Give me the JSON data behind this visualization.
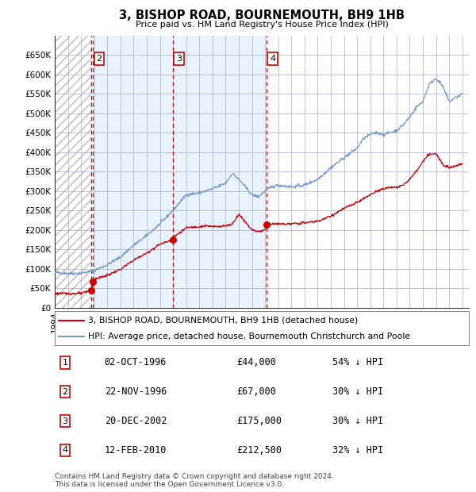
{
  "title": "3, BISHOP ROAD, BOURNEMOUTH, BH9 1HB",
  "subtitle": "Price paid vs. HM Land Registry's House Price Index (HPI)",
  "footer_line1": "Contains HM Land Registry data © Crown copyright and database right 2024.",
  "footer_line2": "This data is licensed under the Open Government Licence v3.0.",
  "legend_line1": "3, BISHOP ROAD, BOURNEMOUTH, BH9 1HB (detached house)",
  "legend_line2": "HPI: Average price, detached house, Bournemouth Christchurch and Poole",
  "sale_color": "#cc0000",
  "hpi_color": "#7799cc",
  "hpi_fill_color": "#ddeeff",
  "grid_color": "#aaaacc",
  "sale_points": [
    {
      "label": "1",
      "year": 1996.75,
      "price": 44000
    },
    {
      "label": "2",
      "year": 1996.92,
      "price": 67000
    },
    {
      "label": "3",
      "year": 2002.97,
      "price": 175000
    },
    {
      "label": "4",
      "year": 2010.12,
      "price": 212500
    }
  ],
  "table_rows": [
    {
      "num": "1",
      "date": "02-OCT-1996",
      "price": "£44,000",
      "pct": "54% ↓ HPI"
    },
    {
      "num": "2",
      "date": "22-NOV-1996",
      "price": "£67,000",
      "pct": "30% ↓ HPI"
    },
    {
      "num": "3",
      "date": "20-DEC-2002",
      "price": "£175,000",
      "pct": "30% ↓ HPI"
    },
    {
      "num": "4",
      "date": "12-FEB-2010",
      "price": "£212,500",
      "pct": "32% ↓ HPI"
    }
  ],
  "ylim": [
    0,
    700000
  ],
  "yticks": [
    0,
    50000,
    100000,
    150000,
    200000,
    250000,
    300000,
    350000,
    400000,
    450000,
    500000,
    550000,
    600000,
    650000
  ],
  "xmin": 1994.0,
  "xmax": 2025.5,
  "xticks": [
    1994,
    1995,
    1996,
    1997,
    1998,
    1999,
    2000,
    2001,
    2002,
    2003,
    2004,
    2005,
    2006,
    2007,
    2008,
    2009,
    2010,
    2011,
    2012,
    2013,
    2014,
    2015,
    2016,
    2017,
    2018,
    2019,
    2020,
    2021,
    2022,
    2023,
    2024,
    2025
  ],
  "hpi_anchors": [
    [
      1994.0,
      90000
    ],
    [
      1995.0,
      88000
    ],
    [
      1996.0,
      88000
    ],
    [
      1997.0,
      95000
    ],
    [
      1998.0,
      110000
    ],
    [
      1999.0,
      130000
    ],
    [
      2000.0,
      160000
    ],
    [
      2001.0,
      185000
    ],
    [
      2002.0,
      215000
    ],
    [
      2003.0,
      250000
    ],
    [
      2004.0,
      290000
    ],
    [
      2005.0,
      295000
    ],
    [
      2006.0,
      305000
    ],
    [
      2007.0,
      320000
    ],
    [
      2007.5,
      345000
    ],
    [
      2008.0,
      330000
    ],
    [
      2009.0,
      290000
    ],
    [
      2009.5,
      285000
    ],
    [
      2010.0,
      300000
    ],
    [
      2010.5,
      310000
    ],
    [
      2011.0,
      315000
    ],
    [
      2012.0,
      310000
    ],
    [
      2013.0,
      315000
    ],
    [
      2014.0,
      330000
    ],
    [
      2015.0,
      360000
    ],
    [
      2016.0,
      385000
    ],
    [
      2017.0,
      410000
    ],
    [
      2017.5,
      435000
    ],
    [
      2018.0,
      445000
    ],
    [
      2018.5,
      450000
    ],
    [
      2019.0,
      445000
    ],
    [
      2019.5,
      450000
    ],
    [
      2020.0,
      455000
    ],
    [
      2020.5,
      470000
    ],
    [
      2021.0,
      490000
    ],
    [
      2021.5,
      515000
    ],
    [
      2022.0,
      530000
    ],
    [
      2022.5,
      575000
    ],
    [
      2023.0,
      590000
    ],
    [
      2023.5,
      570000
    ],
    [
      2024.0,
      530000
    ],
    [
      2024.5,
      540000
    ],
    [
      2025.0,
      550000
    ]
  ],
  "red_anchors": [
    [
      1994.0,
      36000
    ],
    [
      1995.0,
      36000
    ],
    [
      1996.0,
      36000
    ],
    [
      1996.75,
      44000
    ],
    [
      1996.92,
      67000
    ],
    [
      1997.0,
      72000
    ],
    [
      1998.0,
      83000
    ],
    [
      1999.0,
      98000
    ],
    [
      2000.0,
      122000
    ],
    [
      2001.0,
      140000
    ],
    [
      2002.0,
      163000
    ],
    [
      2002.97,
      175000
    ],
    [
      2003.0,
      180000
    ],
    [
      2004.0,
      205000
    ],
    [
      2005.5,
      210000
    ],
    [
      2006.0,
      208000
    ],
    [
      2007.0,
      210000
    ],
    [
      2007.5,
      215000
    ],
    [
      2008.0,
      240000
    ],
    [
      2008.5,
      220000
    ],
    [
      2009.0,
      200000
    ],
    [
      2009.5,
      195000
    ],
    [
      2010.0,
      200000
    ],
    [
      2010.12,
      212500
    ],
    [
      2010.5,
      215000
    ],
    [
      2011.0,
      215000
    ],
    [
      2012.0,
      215000
    ],
    [
      2013.0,
      218000
    ],
    [
      2014.0,
      222000
    ],
    [
      2015.0,
      235000
    ],
    [
      2016.0,
      255000
    ],
    [
      2017.0,
      270000
    ],
    [
      2017.5,
      280000
    ],
    [
      2018.0,
      290000
    ],
    [
      2018.5,
      300000
    ],
    [
      2019.0,
      305000
    ],
    [
      2019.5,
      310000
    ],
    [
      2020.0,
      308000
    ],
    [
      2020.5,
      315000
    ],
    [
      2021.0,
      330000
    ],
    [
      2021.5,
      350000
    ],
    [
      2022.0,
      375000
    ],
    [
      2022.5,
      395000
    ],
    [
      2023.0,
      395000
    ],
    [
      2023.5,
      370000
    ],
    [
      2024.0,
      360000
    ],
    [
      2024.5,
      365000
    ],
    [
      2025.0,
      370000
    ]
  ]
}
